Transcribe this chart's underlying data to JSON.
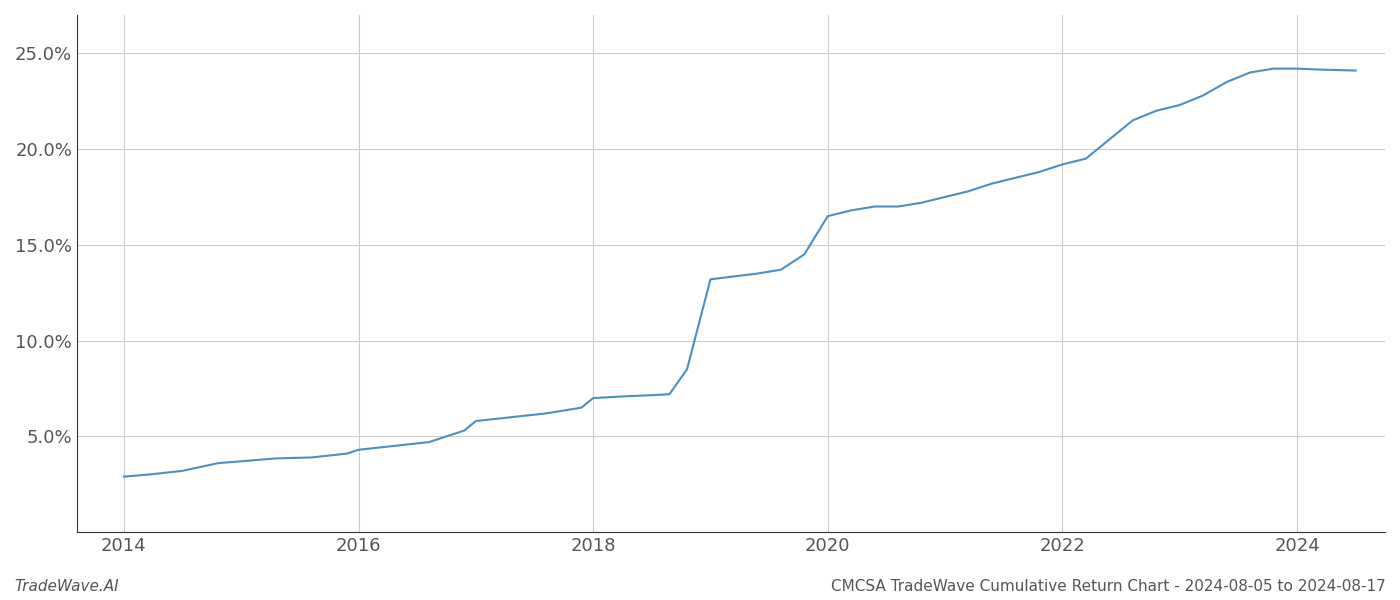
{
  "title": "CMCSA TradeWave Cumulative Return Chart - 2024-08-05 to 2024-08-17",
  "watermark": "TradeWave.AI",
  "line_color": "#4a90c4",
  "background_color": "#ffffff",
  "grid_color": "#cccccc",
  "x_values": [
    2014.0,
    2014.2,
    2014.5,
    2014.8,
    2015.0,
    2015.3,
    2015.6,
    2015.9,
    2016.0,
    2016.3,
    2016.6,
    2016.9,
    2017.0,
    2017.3,
    2017.6,
    2017.9,
    2018.0,
    2018.15,
    2018.3,
    2018.5,
    2018.65,
    2018.8,
    2019.0,
    2019.2,
    2019.4,
    2019.6,
    2019.8,
    2020.0,
    2020.2,
    2020.4,
    2020.6,
    2020.8,
    2021.0,
    2021.2,
    2021.4,
    2021.6,
    2021.8,
    2022.0,
    2022.2,
    2022.4,
    2022.6,
    2022.8,
    2023.0,
    2023.2,
    2023.4,
    2023.6,
    2023.8,
    2024.0,
    2024.2,
    2024.5
  ],
  "y_values": [
    2.9,
    3.0,
    3.2,
    3.6,
    3.7,
    3.85,
    3.9,
    4.1,
    4.3,
    4.5,
    4.7,
    5.3,
    5.8,
    6.0,
    6.2,
    6.5,
    7.0,
    7.05,
    7.1,
    7.15,
    7.2,
    8.5,
    13.2,
    13.35,
    13.5,
    13.7,
    14.5,
    16.5,
    16.8,
    17.0,
    17.0,
    17.2,
    17.5,
    17.8,
    18.2,
    18.5,
    18.8,
    19.2,
    19.5,
    20.5,
    21.5,
    22.0,
    22.3,
    22.8,
    23.5,
    24.0,
    24.2,
    24.2,
    24.15,
    24.1
  ],
  "xlim": [
    2013.6,
    2024.75
  ],
  "ylim": [
    0,
    27
  ],
  "yticks": [
    5.0,
    10.0,
    15.0,
    20.0,
    25.0
  ],
  "xticks": [
    2014,
    2016,
    2018,
    2020,
    2022,
    2024
  ],
  "tick_label_color": "#555555",
  "tick_fontsize": 13,
  "footer_fontsize": 11,
  "line_width": 1.5
}
